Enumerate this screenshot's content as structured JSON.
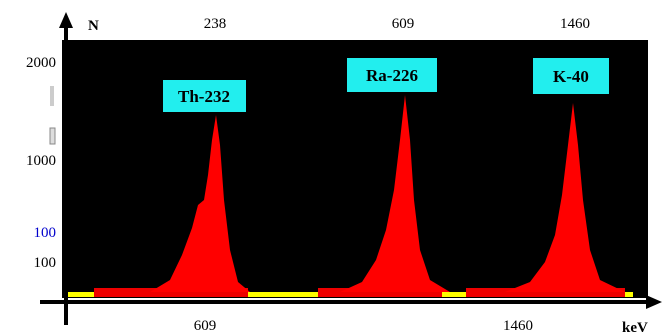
{
  "axis": {
    "y_name": "N",
    "x_name": "keV"
  },
  "top_labels": [
    "238",
    "609",
    "1460"
  ],
  "bottom_labels": [
    "609",
    "1460"
  ],
  "y_labels": [
    "2000",
    "1000",
    "100",
    "100"
  ],
  "peaks": [
    "Th-232",
    "Ra-226",
    "K-40"
  ]
}
